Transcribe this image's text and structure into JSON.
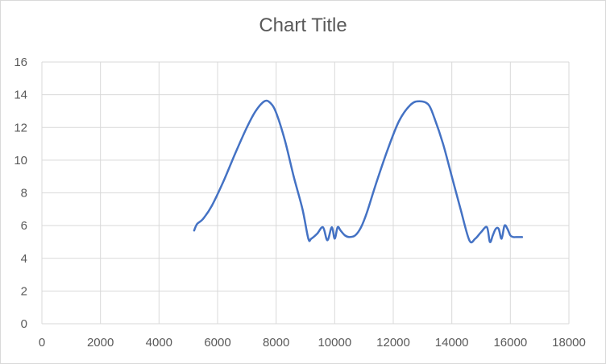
{
  "chart_data": {
    "type": "scatter",
    "title": "Chart Title",
    "xlabel": "",
    "ylabel": "",
    "xlim": [
      0,
      18000
    ],
    "ylim": [
      0,
      16
    ],
    "x_ticks": [
      0,
      2000,
      4000,
      6000,
      8000,
      10000,
      12000,
      14000,
      16000,
      18000
    ],
    "y_ticks": [
      0,
      2,
      4,
      6,
      8,
      10,
      12,
      14,
      16
    ],
    "grid": true,
    "legend": "none",
    "line_color": "#4472c4",
    "series": [
      {
        "x": [
          5200,
          5300,
          5500,
          5800,
          6200,
          6600,
          7000,
          7300,
          7600,
          7800,
          8000,
          8300,
          8600,
          8900,
          9100,
          9200,
          9400,
          9600,
          9750,
          9900,
          10000,
          10100,
          10200,
          10350,
          10500,
          10700,
          10900,
          11100,
          11400,
          11800,
          12200,
          12600,
          12900,
          13200,
          13400,
          13700,
          14000,
          14300,
          14600,
          14800,
          15000,
          15200,
          15300,
          15400,
          15500,
          15600,
          15700,
          15800,
          15900,
          16000,
          16100,
          16200,
          16400
        ],
        "y": [
          5.7,
          6.1,
          6.4,
          7.2,
          8.7,
          10.4,
          12.0,
          13.0,
          13.6,
          13.5,
          12.9,
          11.2,
          9.0,
          7.0,
          5.2,
          5.2,
          5.5,
          5.9,
          5.1,
          5.9,
          5.2,
          5.9,
          5.7,
          5.4,
          5.3,
          5.4,
          5.9,
          6.8,
          8.5,
          10.6,
          12.4,
          13.4,
          13.6,
          13.4,
          12.6,
          11.0,
          9.0,
          7.0,
          5.1,
          5.2,
          5.6,
          5.9,
          5.0,
          5.4,
          5.8,
          5.8,
          5.2,
          6.0,
          5.8,
          5.4,
          5.3,
          5.3,
          5.3
        ]
      }
    ]
  }
}
